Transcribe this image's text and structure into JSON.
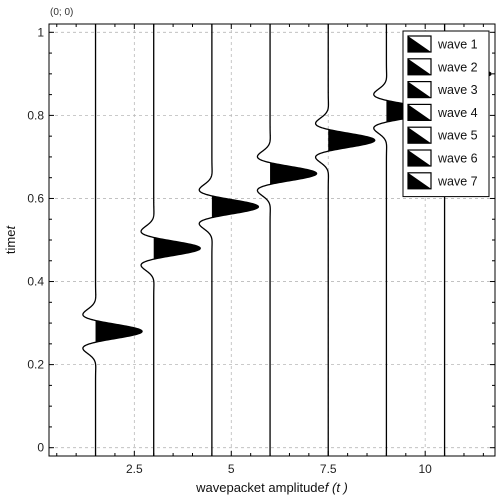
{
  "coordinate_readout": "(0; 0)",
  "chart_data": {
    "type": "line",
    "title": "",
    "xlabel": "wavepacket amplitude",
    "xlabel_math": "f (t )",
    "ylabel": "time",
    "ylabel_math": "t",
    "xlim": [
      0.3,
      11.8
    ],
    "ylim": [
      -0.02,
      1.02
    ],
    "x_ticks": [
      2.5,
      5,
      7.5,
      10
    ],
    "x_tick_labels": [
      "2.5",
      "5",
      "7.5",
      "10"
    ],
    "y_ticks": [
      0,
      0.2,
      0.4,
      0.6,
      0.8,
      1
    ],
    "y_tick_labels": [
      "0",
      "0.2",
      "0.4",
      "0.6",
      "0.8",
      "1"
    ],
    "grid": true,
    "legend_position": "top-right",
    "series": [
      {
        "name": "wave 1",
        "baseline": 1.5,
        "center_t": 0.28,
        "amplitude": 1.2
      },
      {
        "name": "wave 2",
        "baseline": 3.0,
        "center_t": 0.48,
        "amplitude": 1.2
      },
      {
        "name": "wave 3",
        "baseline": 4.5,
        "center_t": 0.58,
        "amplitude": 1.2
      },
      {
        "name": "wave 4",
        "baseline": 6.0,
        "center_t": 0.66,
        "amplitude": 1.2
      },
      {
        "name": "wave 5",
        "baseline": 7.5,
        "center_t": 0.74,
        "amplitude": 1.2
      },
      {
        "name": "wave 6",
        "baseline": 9.0,
        "center_t": 0.81,
        "amplitude": 1.2
      },
      {
        "name": "wave 7",
        "baseline": 10.5,
        "center_t": 0.9,
        "amplitude": 1.2
      }
    ]
  }
}
